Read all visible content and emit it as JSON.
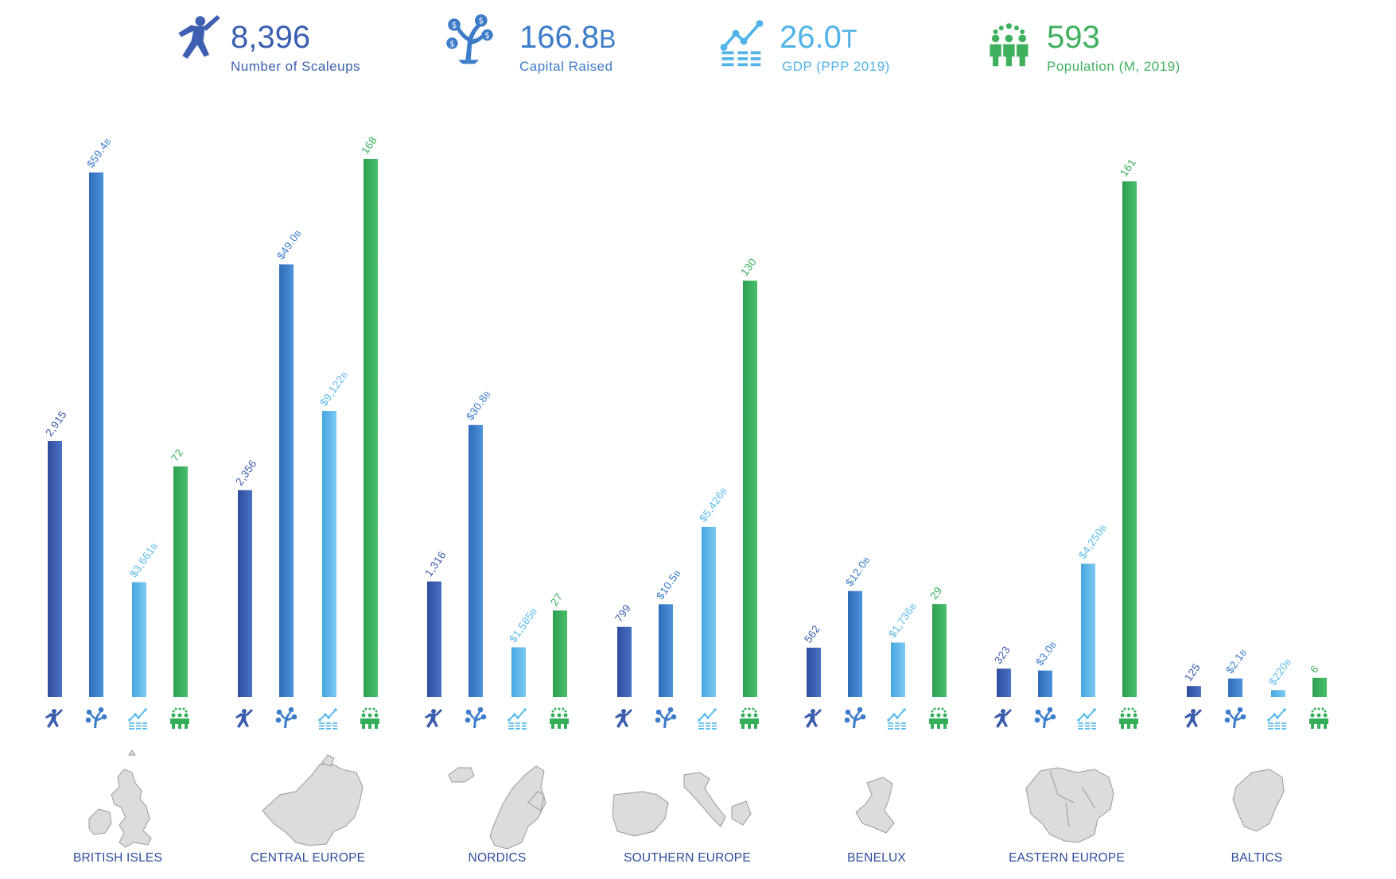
{
  "kpis": [
    {
      "id": "scaleups",
      "value": "8,396",
      "suffix": "",
      "label": "Number of Scaleups",
      "color": "#3a5fb0",
      "icon": "jumping-person-icon"
    },
    {
      "id": "capital",
      "value": "166.8",
      "suffix": "B",
      "label": "Capital Raised",
      "color": "#3d7cc9",
      "icon": "money-tree-icon"
    },
    {
      "id": "gdp",
      "value": "26.0",
      "suffix": "T",
      "label": "GDP (PPP 2019)",
      "color": "#52b3e8",
      "icon": "growth-chart-icon"
    },
    {
      "id": "population",
      "value": "593",
      "suffix": "",
      "label": "Population (M, 2019)",
      "color": "#3fb05e",
      "icon": "people-group-icon"
    }
  ],
  "colors": {
    "scaleups": "#3a5cad",
    "capital": "#3c7dcb",
    "gdp": "#5bbaec",
    "population": "#35ae5a",
    "map_fill": "#dcdcdc",
    "map_stroke": "#999999",
    "region_label": "#2c4c9c"
  },
  "chart_data": {
    "type": "bar",
    "categories": [
      "BRITISH ISLES",
      "CENTRAL EUROPE",
      "NORDICS",
      "SOUTHERN EUROPE",
      "BENELUX",
      "EASTERN EUROPE",
      "BALTICS"
    ],
    "series_order": [
      "scaleups",
      "capital",
      "gdp",
      "population"
    ],
    "series": [
      {
        "key": "scaleups",
        "values": [
          2915,
          2356,
          1316,
          799,
          562,
          323,
          125
        ],
        "labels": [
          {
            "t": "2,915",
            "s": ""
          },
          {
            "t": "2,356",
            "s": ""
          },
          {
            "t": "1,316",
            "s": ""
          },
          {
            "t": "799",
            "s": ""
          },
          {
            "t": "562",
            "s": ""
          },
          {
            "t": "323",
            "s": ""
          },
          {
            "t": "125",
            "s": ""
          }
        ]
      },
      {
        "key": "capital",
        "values": [
          59.4,
          49.0,
          30.8,
          10.5,
          12.0,
          3.0,
          2.1
        ],
        "labels": [
          {
            "t": "$59.4",
            "s": "B"
          },
          {
            "t": "$49.0",
            "s": "B"
          },
          {
            "t": "$30.8",
            "s": "B"
          },
          {
            "t": "$10.5",
            "s": "B"
          },
          {
            "t": "$12.0",
            "s": "B"
          },
          {
            "t": "$3.0",
            "s": "B"
          },
          {
            "t": "$2.1",
            "s": "B"
          }
        ]
      },
      {
        "key": "gdp",
        "values": [
          3661,
          9122,
          1585,
          5426,
          1736,
          4250,
          220
        ],
        "labels": [
          {
            "t": "$3,661",
            "s": "B"
          },
          {
            "t": "$9,122",
            "s": "B"
          },
          {
            "t": "$1,585",
            "s": "B"
          },
          {
            "t": "$5,426",
            "s": "B"
          },
          {
            "t": "$1,736",
            "s": "B"
          },
          {
            "t": "$4,250",
            "s": "B"
          },
          {
            "t": "$220",
            "s": "B"
          }
        ]
      },
      {
        "key": "population",
        "values": [
          72,
          168,
          27,
          130,
          29,
          161,
          6
        ],
        "labels": [
          {
            "t": "72",
            "s": ""
          },
          {
            "t": "168",
            "s": ""
          },
          {
            "t": "27",
            "s": ""
          },
          {
            "t": "130",
            "s": ""
          },
          {
            "t": "29",
            "s": ""
          },
          {
            "t": "161",
            "s": ""
          },
          {
            "t": "6",
            "s": ""
          }
        ]
      }
    ],
    "grid": false,
    "legend": "top"
  }
}
